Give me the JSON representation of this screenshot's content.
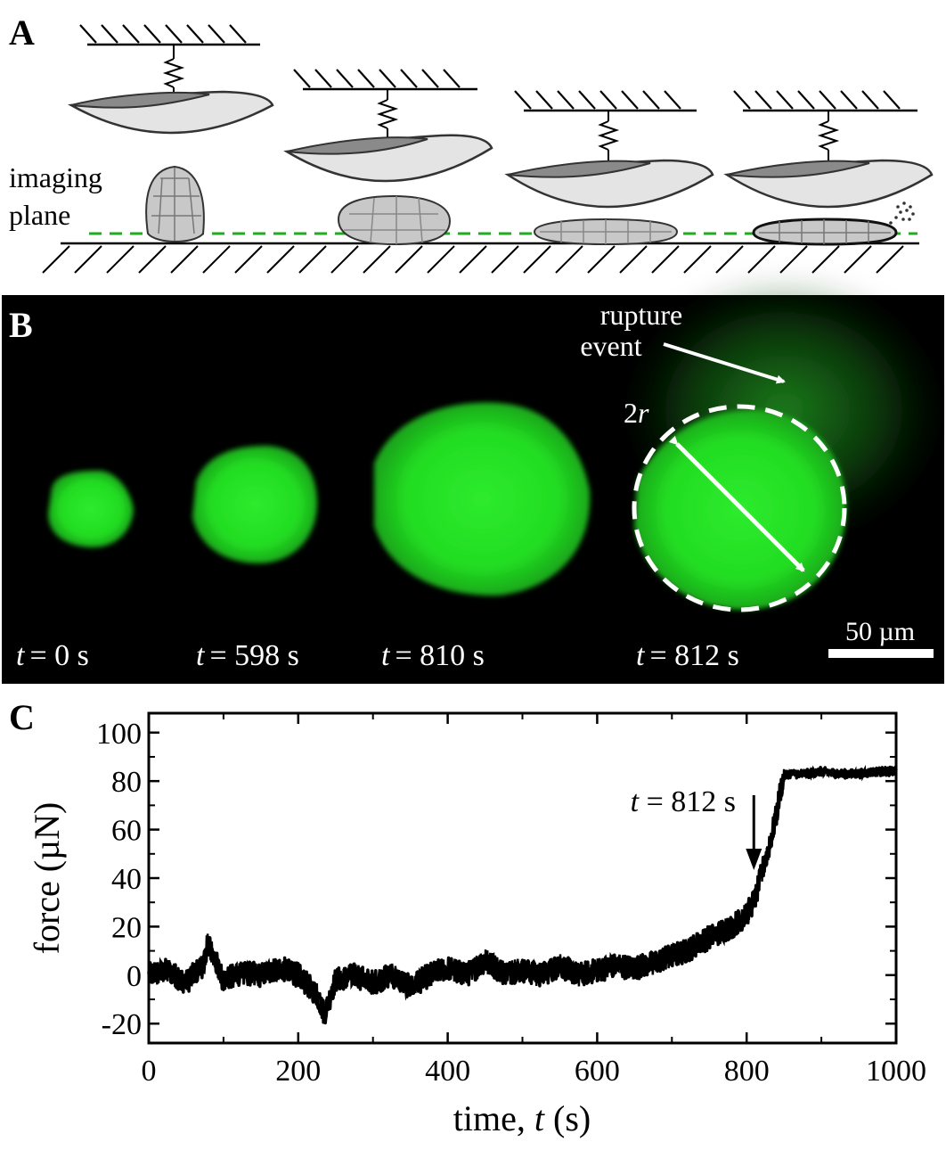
{
  "panels": {
    "a": {
      "label": "A",
      "imaging_plane_label": [
        "imaging",
        "plane"
      ]
    },
    "b": {
      "label": "B",
      "rupture_label": [
        "rupture",
        "event"
      ],
      "diameter_label": {
        "num": "2",
        "var": "r"
      },
      "scale_bar": "50 µm",
      "time_var": "t",
      "timepoints": [
        "= 0 s",
        "= 598 s",
        "= 810 s",
        "= 812 s"
      ],
      "colors": {
        "background": "#000000",
        "fluor": "#22dd22",
        "overlay": "#ffffff"
      }
    },
    "c": {
      "label": "C",
      "annotation": {
        "var": "t",
        "text": " = 812 s",
        "x": 812
      }
    }
  },
  "chart_data": {
    "type": "scatter",
    "xlabel": "time, t (s)",
    "xlabel_parts": {
      "before": "time, ",
      "var": "t",
      "after": " (s)"
    },
    "ylabel": "force (µN)",
    "xlim": [
      0,
      1000
    ],
    "ylim": [
      -28,
      108
    ],
    "x_ticks": [
      0,
      200,
      400,
      600,
      800,
      1000
    ],
    "y_ticks": [
      -20,
      0,
      20,
      40,
      60,
      80,
      100
    ],
    "x_tick_labels": [
      "0",
      "200",
      "400",
      "600",
      "800",
      "1000"
    ],
    "y_tick_labels": [
      "-20",
      "0",
      "20",
      "40",
      "60",
      "80",
      "100"
    ],
    "grid": false,
    "legend": "none",
    "series": [
      {
        "x": [
          0,
          25,
          50,
          75,
          78,
          100,
          125,
          150,
          175,
          200,
          225,
          235,
          250,
          275,
          300,
          325,
          350,
          375,
          400,
          425,
          450,
          475,
          500,
          525,
          550,
          575,
          600,
          625,
          650,
          675,
          700,
          720,
          740,
          760,
          780,
          800,
          812,
          820,
          830,
          840,
          845,
          850,
          855,
          860,
          880,
          900,
          925,
          950,
          975,
          1000
        ],
        "y": [
          0,
          2,
          -3,
          5,
          14,
          -2,
          1,
          0,
          3,
          0,
          -8,
          -16,
          -2,
          0,
          -3,
          0,
          -5,
          0,
          3,
          0,
          6,
          1,
          2,
          0,
          4,
          0,
          2,
          4,
          3,
          5,
          8,
          10,
          14,
          17,
          20,
          25,
          32,
          42,
          53,
          66,
          76,
          82,
          83,
          83,
          83,
          84,
          83,
          83,
          84,
          84
        ],
        "noise_amplitude": 5
      }
    ]
  }
}
